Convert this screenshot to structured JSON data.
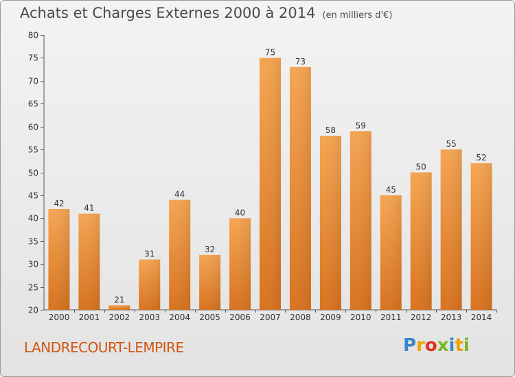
{
  "title": "Achats et Charges Externes 2000 à 2014",
  "unit_label": "(en milliers d'€)",
  "commune": "LANDRECOURT-LEMPIRE",
  "brand": {
    "letters": [
      "P",
      "r",
      "o",
      "x",
      "i",
      "t",
      "i"
    ],
    "colors": [
      "#3a86c8",
      "#f0a000",
      "#e0301e",
      "#7ab51d",
      "#3a86c8",
      "#f0a000",
      "#7ab51d"
    ]
  },
  "colors": {
    "bar": "#ef9a45",
    "bar_dark": "#d8731f",
    "commune": "#d4540f"
  },
  "chart_data": {
    "type": "bar",
    "categories": [
      "2000",
      "2001",
      "2002",
      "2003",
      "2004",
      "2005",
      "2006",
      "2007",
      "2008",
      "2009",
      "2010",
      "2011",
      "2012",
      "2013",
      "2014"
    ],
    "values": [
      42,
      41,
      21,
      31,
      44,
      32,
      40,
      75,
      73,
      58,
      59,
      45,
      50,
      55,
      52
    ],
    "title": "Achats et Charges Externes 2000 à 2014",
    "xlabel": "",
    "ylabel": "",
    "ylim": [
      20,
      80
    ],
    "yticks": [
      20,
      25,
      30,
      35,
      40,
      45,
      50,
      55,
      60,
      65,
      70,
      75,
      80
    ],
    "grid": false
  }
}
